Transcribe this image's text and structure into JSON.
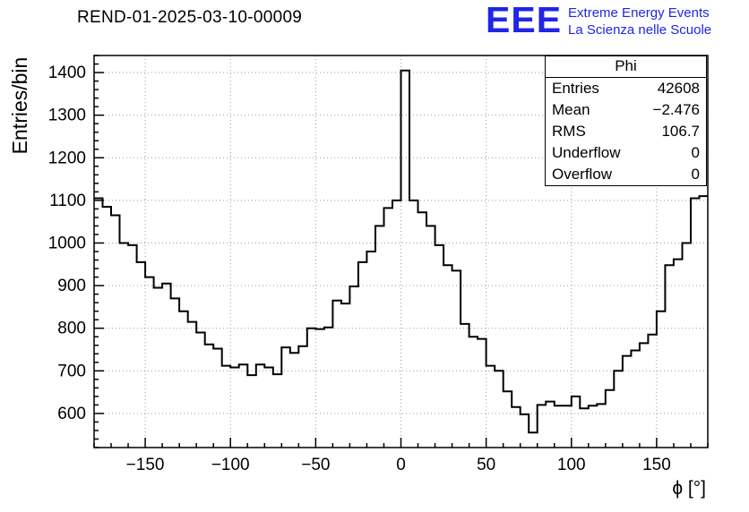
{
  "header": {
    "title": "REND-01-2025-03-10-00009"
  },
  "logo": {
    "text": "EEE",
    "line1": "Extreme Energy Events",
    "line2": "La Scienza nelle Scuole",
    "color": "#2025e6"
  },
  "stats": {
    "title": "Phi",
    "entries_label": "Entries",
    "entries_value": "42608",
    "mean_label": "Mean",
    "mean_value": "−2.476",
    "rms_label": "RMS",
    "rms_value": "106.7",
    "underflow_label": "Underflow",
    "underflow_value": "0",
    "overflow_label": "Overflow",
    "overflow_value": "0"
  },
  "chart_data": {
    "type": "bar",
    "subtype": "step-histogram",
    "title": "REND-01-2025-03-10-00009",
    "xlabel": "ϕ [°]",
    "ylabel": "Entries/bin",
    "xlim": [
      -180,
      180
    ],
    "ylim": [
      520,
      1440
    ],
    "xticks": [
      -150,
      -100,
      -50,
      0,
      50,
      100,
      150
    ],
    "yticks": [
      600,
      700,
      800,
      900,
      1000,
      1100,
      1200,
      1300,
      1400
    ],
    "grid": true,
    "bin_start": -180,
    "bin_width": 5,
    "bin_count": 72,
    "values": [
      1105,
      1085,
      1065,
      1000,
      995,
      955,
      920,
      895,
      905,
      870,
      840,
      815,
      790,
      762,
      752,
      712,
      708,
      715,
      690,
      715,
      708,
      692,
      755,
      742,
      758,
      800,
      798,
      802,
      865,
      858,
      898,
      955,
      980,
      1040,
      1082,
      1100,
      1405,
      1100,
      1072,
      1040,
      995,
      948,
      935,
      810,
      780,
      775,
      712,
      700,
      652,
      615,
      598,
      555,
      620,
      628,
      618,
      618,
      640,
      612,
      618,
      622,
      655,
      700,
      735,
      748,
      765,
      785,
      840,
      948,
      962,
      1000,
      1105,
      1110
    ]
  }
}
